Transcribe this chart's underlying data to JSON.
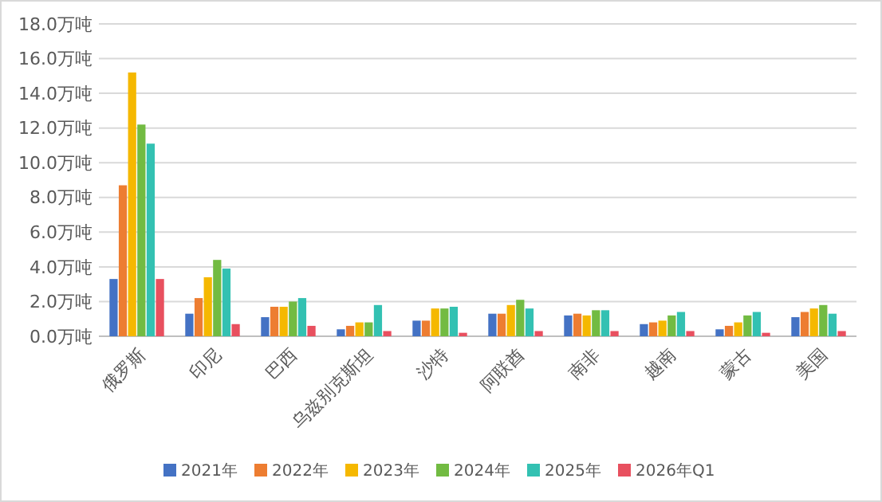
{
  "chart_data": {
    "type": "bar",
    "categories": [
      "俄罗斯",
      "印尼",
      "巴西",
      "乌兹别克斯坦",
      "沙特",
      "阿联酋",
      "南非",
      "越南",
      "蒙古",
      "美国"
    ],
    "series": [
      {
        "name": "2021年",
        "color": "#4472c4",
        "values": [
          3.3,
          1.3,
          1.1,
          0.4,
          0.9,
          1.3,
          1.2,
          0.7,
          0.4,
          1.1
        ]
      },
      {
        "name": "2022年",
        "color": "#ed7d31",
        "values": [
          8.7,
          2.2,
          1.7,
          0.6,
          0.9,
          1.3,
          1.3,
          0.8,
          0.6,
          1.4
        ]
      },
      {
        "name": "2023年",
        "color": "#f5b800",
        "values": [
          15.2,
          3.4,
          1.7,
          0.8,
          1.6,
          1.8,
          1.2,
          0.9,
          0.8,
          1.6
        ]
      },
      {
        "name": "2024年",
        "color": "#72bb42",
        "values": [
          12.2,
          4.4,
          2.0,
          0.8,
          1.6,
          2.1,
          1.5,
          1.2,
          1.2,
          1.8
        ]
      },
      {
        "name": "2025年",
        "color": "#33c1b2",
        "values": [
          11.1,
          3.9,
          2.2,
          1.8,
          1.7,
          1.6,
          1.5,
          1.4,
          1.4,
          1.3
        ]
      },
      {
        "name": "2026年Q1",
        "color": "#e8505f",
        "values": [
          3.3,
          0.7,
          0.6,
          0.3,
          0.2,
          0.3,
          0.3,
          0.3,
          0.2,
          0.3
        ]
      }
    ],
    "ylim": [
      0,
      18
    ],
    "yticks": [
      {
        "value": 0,
        "label": "0.0万吨"
      },
      {
        "value": 2,
        "label": "2.0万吨"
      },
      {
        "value": 4,
        "label": "4.0万吨"
      },
      {
        "value": 6,
        "label": "6.0万吨"
      },
      {
        "value": 8,
        "label": "8.0万吨"
      },
      {
        "value": 10,
        "label": "10.0万吨"
      },
      {
        "value": 12,
        "label": "12.0万吨"
      },
      {
        "value": 14,
        "label": "14.0万吨"
      },
      {
        "value": 16,
        "label": "16.0万吨"
      },
      {
        "value": 18,
        "label": "18.0万吨"
      }
    ],
    "grid": "y",
    "legend": "bottom"
  }
}
